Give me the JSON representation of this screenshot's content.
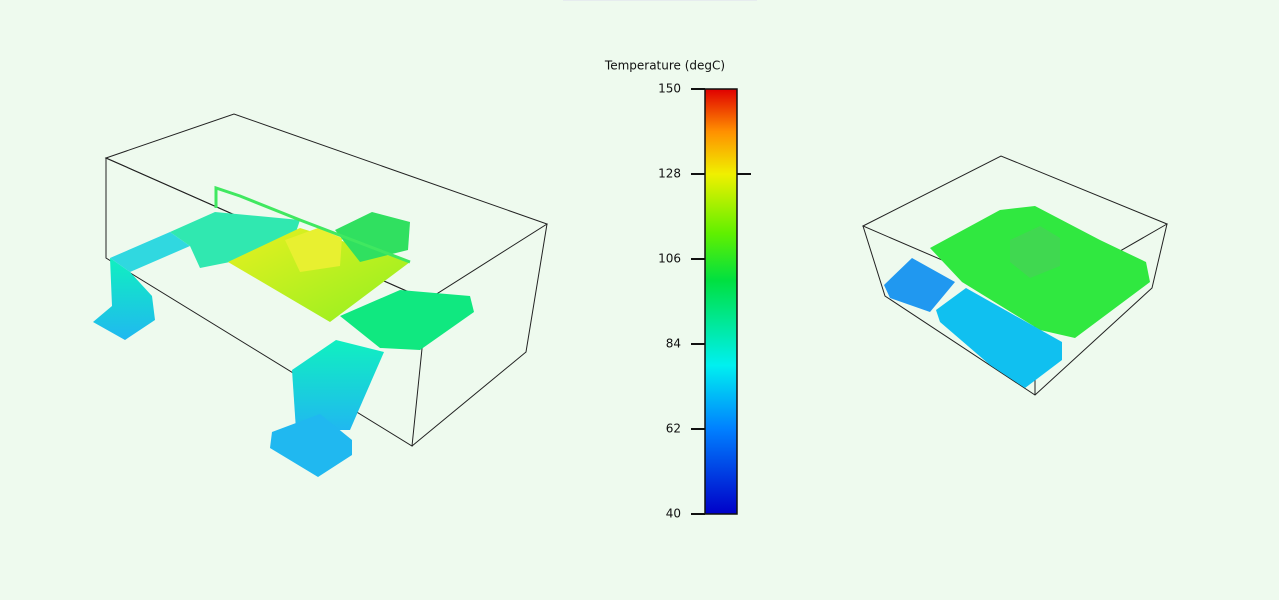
{
  "chart_data": {
    "type": "colorbar",
    "title": "Temperature (degC)",
    "ylim": [
      40,
      150
    ],
    "yticks": [
      40,
      62,
      84,
      106,
      128,
      150
    ],
    "marker": 128
  }
}
